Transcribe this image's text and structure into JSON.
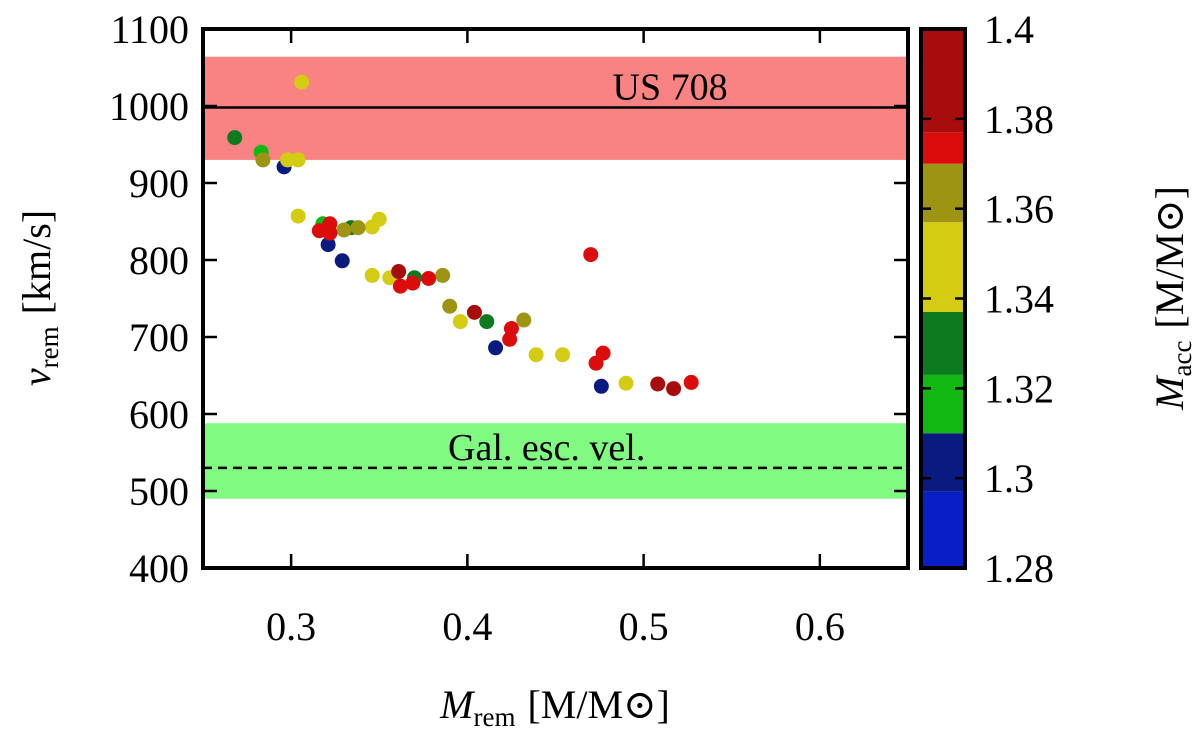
{
  "chart_data": {
    "type": "scatter",
    "xlabel": {
      "main": "M",
      "sub": "rem",
      "unit": "[M/M⊙]"
    },
    "ylabel": {
      "main": "v",
      "sub": "rem",
      "unit": "[km/s]"
    },
    "colorbar_label": {
      "main": "M",
      "sub": "acc",
      "unit": "[M/M⊙]"
    },
    "xlim": [
      0.25,
      0.65
    ],
    "ylim": [
      400,
      1100
    ],
    "x_ticks": [
      0.3,
      0.4,
      0.5,
      0.6
    ],
    "x_tick_labels": [
      "0.3",
      "0.4",
      "0.5",
      "0.6"
    ],
    "y_ticks": [
      400,
      500,
      600,
      700,
      800,
      900,
      1000,
      1100
    ],
    "y_tick_labels": [
      "400",
      "500",
      "600",
      "700",
      "800",
      "900",
      "1000",
      "1100"
    ],
    "colorbar": {
      "range": [
        1.28,
        1.4
      ],
      "ticks": [
        1.28,
        1.3,
        1.32,
        1.34,
        1.36,
        1.38,
        1.4
      ],
      "tick_labels": [
        "1.28",
        "1.3",
        "1.32",
        "1.34",
        "1.36",
        "1.38",
        "1.4"
      ],
      "segments": [
        {
          "from": 1.28,
          "to": 1.297,
          "color": "#0a1ec8"
        },
        {
          "from": 1.297,
          "to": 1.31,
          "color": "#0a1a80"
        },
        {
          "from": 1.31,
          "to": 1.323,
          "color": "#12b812"
        },
        {
          "from": 1.323,
          "to": 1.337,
          "color": "#0d7a1e"
        },
        {
          "from": 1.337,
          "to": 1.357,
          "color": "#d4cc12"
        },
        {
          "from": 1.357,
          "to": 1.37,
          "color": "#9e9414"
        },
        {
          "from": 1.37,
          "to": 1.377,
          "color": "#dd0c0c"
        },
        {
          "from": 1.377,
          "to": 1.4,
          "color": "#a80d0d"
        }
      ]
    },
    "bands": [
      {
        "name": "US 708",
        "ymin": 930,
        "ymax": 1064,
        "line": 998,
        "line_style": "solid",
        "color": "#f98282",
        "label_x": 0.515
      },
      {
        "name": "Gal. esc. vel.",
        "ymin": 490,
        "ymax": 588,
        "line": 530,
        "line_style": "dashed",
        "color": "#80fa80",
        "label_x": 0.445
      }
    ],
    "series": [
      {
        "name": "blue",
        "color": "#0a1ec8",
        "points": []
      },
      {
        "name": "dark blue",
        "color": "#0a1a80",
        "points": [
          [
            0.296,
            921
          ],
          [
            0.321,
            820
          ],
          [
            0.329,
            799
          ],
          [
            0.416,
            686
          ],
          [
            0.476,
            636
          ]
        ]
      },
      {
        "name": "bright green",
        "color": "#12b812",
        "points": [
          [
            0.283,
            940
          ],
          [
            0.318,
            847
          ]
        ]
      },
      {
        "name": "dark green",
        "color": "#0d7a1e",
        "points": [
          [
            0.268,
            959
          ],
          [
            0.334,
            842
          ],
          [
            0.37,
            777
          ],
          [
            0.411,
            720
          ]
        ]
      },
      {
        "name": "yellow",
        "color": "#d4cc12",
        "points": [
          [
            0.306,
            1031
          ],
          [
            0.298,
            930
          ],
          [
            0.304,
            930
          ],
          [
            0.304,
            857
          ],
          [
            0.346,
            843
          ],
          [
            0.35,
            853
          ],
          [
            0.346,
            780
          ],
          [
            0.356,
            777
          ],
          [
            0.396,
            720
          ],
          [
            0.439,
            677
          ],
          [
            0.454,
            677
          ],
          [
            0.49,
            640
          ]
        ]
      },
      {
        "name": "olive",
        "color": "#9e9414",
        "points": [
          [
            0.284,
            930
          ],
          [
            0.33,
            839
          ],
          [
            0.338,
            842
          ],
          [
            0.386,
            780
          ],
          [
            0.39,
            740
          ],
          [
            0.432,
            722
          ]
        ]
      },
      {
        "name": "red",
        "color": "#dd0c0c",
        "points": [
          [
            0.316,
            838
          ],
          [
            0.322,
            847
          ],
          [
            0.322,
            835
          ],
          [
            0.362,
            766
          ],
          [
            0.369,
            770
          ],
          [
            0.378,
            776
          ],
          [
            0.425,
            711
          ],
          [
            0.424,
            697
          ],
          [
            0.47,
            807
          ],
          [
            0.473,
            666
          ],
          [
            0.477,
            679
          ],
          [
            0.527,
            641
          ]
        ]
      },
      {
        "name": "dark red",
        "color": "#a80d0d",
        "points": [
          [
            0.361,
            785
          ],
          [
            0.404,
            732
          ],
          [
            0.508,
            639
          ],
          [
            0.517,
            633
          ]
        ]
      }
    ]
  }
}
